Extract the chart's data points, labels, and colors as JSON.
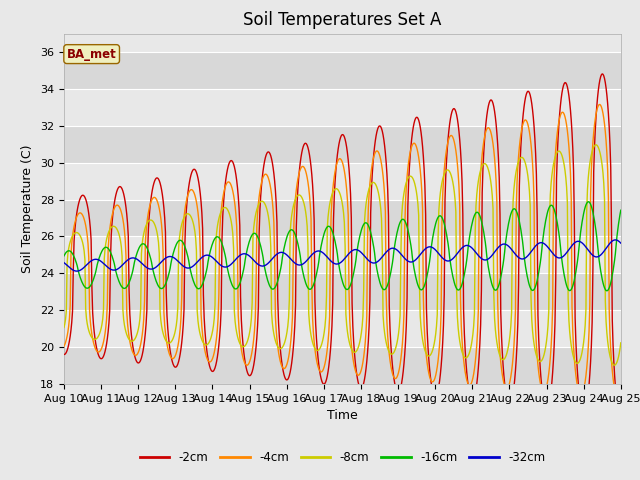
{
  "title": "Soil Temperatures Set A",
  "xlabel": "Time",
  "ylabel": "Soil Temperature (C)",
  "legend_label": "BA_met",
  "ylim": [
    18,
    37
  ],
  "y_tick_min": 18,
  "y_tick_max": 36,
  "y_tick_step": 2,
  "x_tick_labels": [
    "Aug 10",
    "Aug 11",
    "Aug 12",
    "Aug 13",
    "Aug 14",
    "Aug 15",
    "Aug 16",
    "Aug 17",
    "Aug 18",
    "Aug 19",
    "Aug 20",
    "Aug 21",
    "Aug 22",
    "Aug 23",
    "Aug 24",
    "Aug 25"
  ],
  "depths": [
    "-2cm",
    "-4cm",
    "-8cm",
    "-16cm",
    "-32cm"
  ],
  "colors": [
    "#cc0000",
    "#ff8800",
    "#cccc00",
    "#00bb00",
    "#0000cc"
  ],
  "bg_color": "#e8e8e8",
  "band_colors": [
    "#d8d8d8",
    "#e8e8e8"
  ],
  "linewidth": 1.0,
  "title_fontsize": 12,
  "label_fontsize": 9,
  "tick_fontsize": 8
}
